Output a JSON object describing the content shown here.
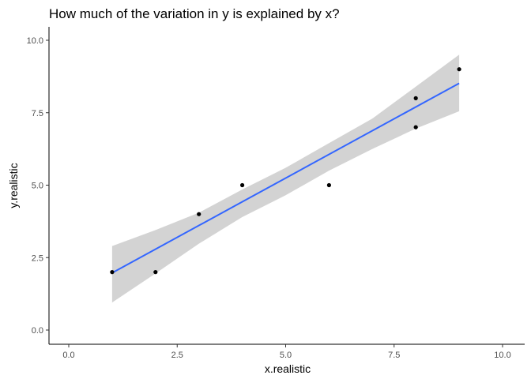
{
  "chart_data": {
    "type": "scatter",
    "title": "How much of the variation in y is explained by x?",
    "xlabel": "x.realistic",
    "ylabel": "y.realistic",
    "xlim": [
      0,
      10
    ],
    "ylim": [
      0,
      10
    ],
    "x_ticks": [
      "0.0",
      "2.5",
      "5.0",
      "7.5",
      "10.0"
    ],
    "y_ticks": [
      "0.0",
      "2.5",
      "5.0",
      "7.5",
      "10.0"
    ],
    "grid": false,
    "points": [
      {
        "x": 1,
        "y": 2
      },
      {
        "x": 2,
        "y": 2
      },
      {
        "x": 3,
        "y": 4
      },
      {
        "x": 4,
        "y": 5
      },
      {
        "x": 6,
        "y": 5
      },
      {
        "x": 8,
        "y": 8
      },
      {
        "x": 8,
        "y": 7
      },
      {
        "x": 9,
        "y": 9
      }
    ],
    "fit": {
      "method": "linear",
      "x_range": [
        1,
        9
      ],
      "line_color": "#3366FF",
      "band_color": "#D3D3D3",
      "intercept": 1.154,
      "slope": 0.818,
      "band": [
        {
          "x": 1,
          "lower": 0.95,
          "upper": 2.9
        },
        {
          "x": 2,
          "lower": 1.95,
          "upper": 3.45
        },
        {
          "x": 3,
          "lower": 2.98,
          "upper": 4.05
        },
        {
          "x": 4,
          "lower": 3.9,
          "upper": 4.85
        },
        {
          "x": 5,
          "lower": 4.65,
          "upper": 5.6
        },
        {
          "x": 6,
          "lower": 5.5,
          "upper": 6.45
        },
        {
          "x": 7,
          "lower": 6.25,
          "upper": 7.3
        },
        {
          "x": 8,
          "lower": 6.95,
          "upper": 8.4
        },
        {
          "x": 9,
          "lower": 7.55,
          "upper": 9.5
        }
      ]
    },
    "point_color": "#000000"
  }
}
